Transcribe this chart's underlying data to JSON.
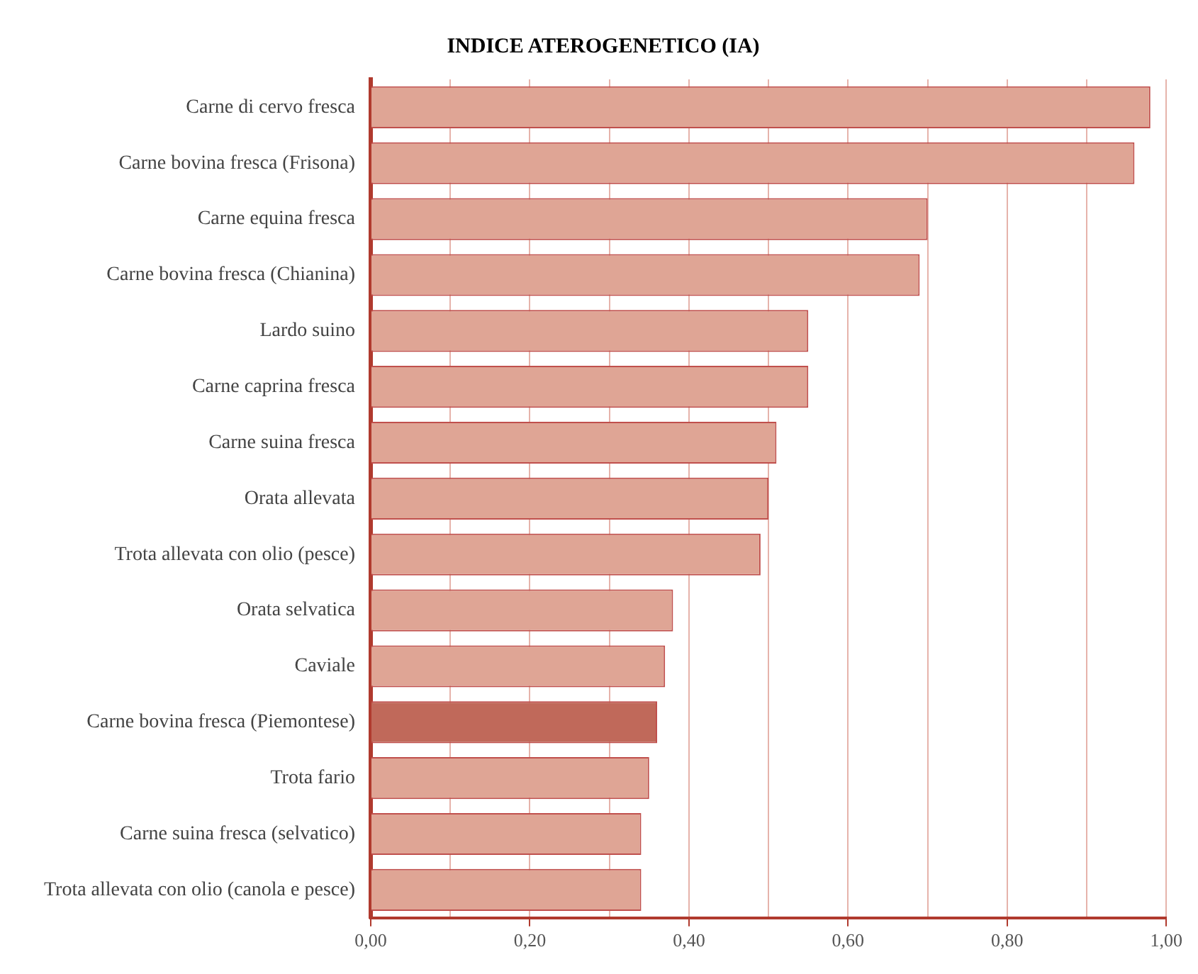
{
  "chart_data": {
    "type": "bar",
    "orientation": "horizontal",
    "title": "INDICE ATEROGENETICO (IA)",
    "categories": [
      "Carne di cervo fresca",
      "Carne bovina fresca (Frisona)",
      "Carne equina fresca",
      "Carne bovina fresca (Chianina)",
      "Lardo suino",
      "Carne caprina fresca",
      "Carne suina fresca",
      "Orata allevata",
      "Trota allevata con olio (pesce)",
      "Orata selvatica",
      "Caviale",
      "Carne bovina fresca (Piemontese)",
      "Trota fario",
      "Carne suina fresca (selvatico)",
      "Trota allevata con olio (canola e pesce)"
    ],
    "values": [
      0.98,
      0.96,
      0.7,
      0.69,
      0.55,
      0.55,
      0.51,
      0.5,
      0.49,
      0.38,
      0.37,
      0.36,
      0.35,
      0.34,
      0.34
    ],
    "colors": [
      "#dfa595",
      "#dfa595",
      "#dfa595",
      "#dfa595",
      "#dfa595",
      "#dfa595",
      "#dfa595",
      "#dfa595",
      "#dfa595",
      "#dfa595",
      "#dfa595",
      "#c0695a",
      "#dfa595",
      "#dfa595",
      "#dfa595"
    ],
    "xlim": [
      0,
      1
    ],
    "xticks": [
      {
        "value": 0,
        "label": "0,00"
      },
      {
        "value": 0.1,
        "label": null
      },
      {
        "value": 0.2,
        "label": "0,20"
      },
      {
        "value": 0.3,
        "label": null
      },
      {
        "value": 0.4,
        "label": "0,40"
      },
      {
        "value": 0.5,
        "label": null
      },
      {
        "value": 0.6,
        "label": "0,60"
      },
      {
        "value": 0.7,
        "label": null
      },
      {
        "value": 0.8,
        "label": "0,80"
      },
      {
        "value": 0.9,
        "label": null
      },
      {
        "value": 1,
        "label": "1,00"
      }
    ],
    "grid": "x",
    "legend": false
  }
}
